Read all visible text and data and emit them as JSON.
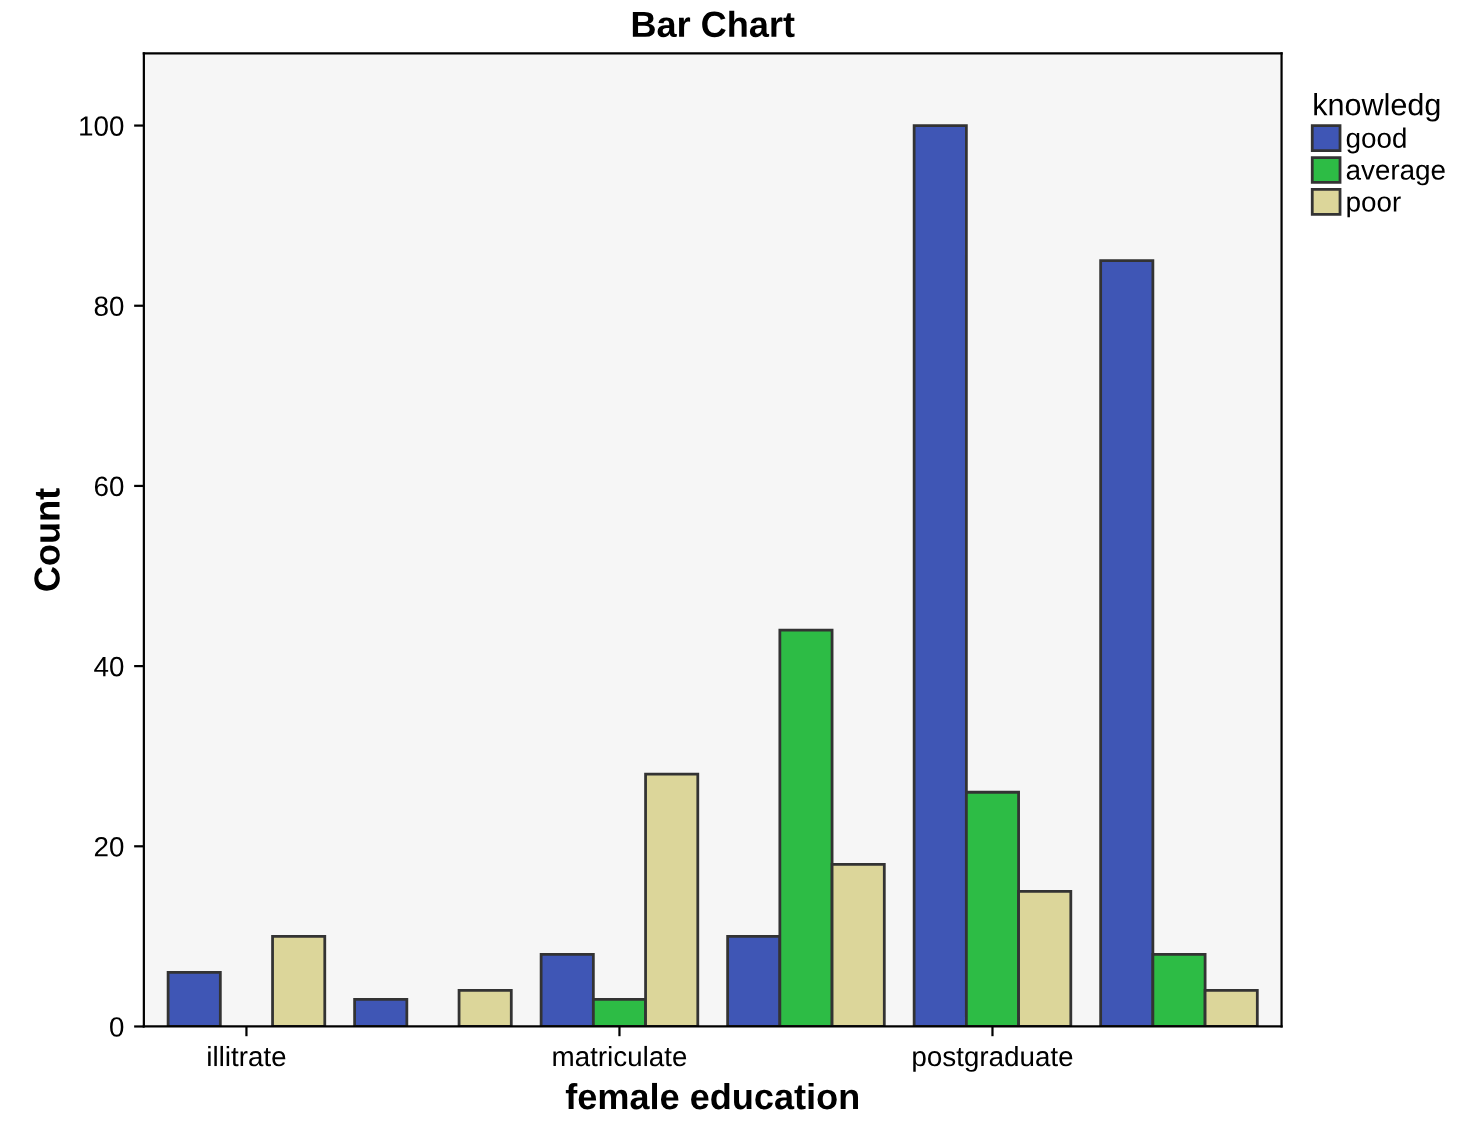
{
  "chart_data": {
    "type": "bar",
    "title": "Bar Chart",
    "xlabel": "female education",
    "ylabel": "Count",
    "legend_title": "knowledg",
    "categories": [
      "illitrate",
      null,
      "matriculate",
      null,
      "postgraduate",
      null
    ],
    "series": [
      {
        "name": "good",
        "color": "#3f56b5",
        "values": [
          6,
          3,
          8,
          10,
          100,
          85
        ]
      },
      {
        "name": "average",
        "color": "#2dbc45",
        "values": [
          null,
          null,
          3,
          44,
          26,
          8
        ]
      },
      {
        "name": "poor",
        "color": "#dcd69a",
        "values": [
          10,
          4,
          28,
          18,
          15,
          4
        ]
      }
    ],
    "ylim": [
      0,
      108
    ],
    "yticks": [
      0,
      20,
      40,
      60,
      80,
      100
    ],
    "grid": false,
    "legend": "top right"
  }
}
